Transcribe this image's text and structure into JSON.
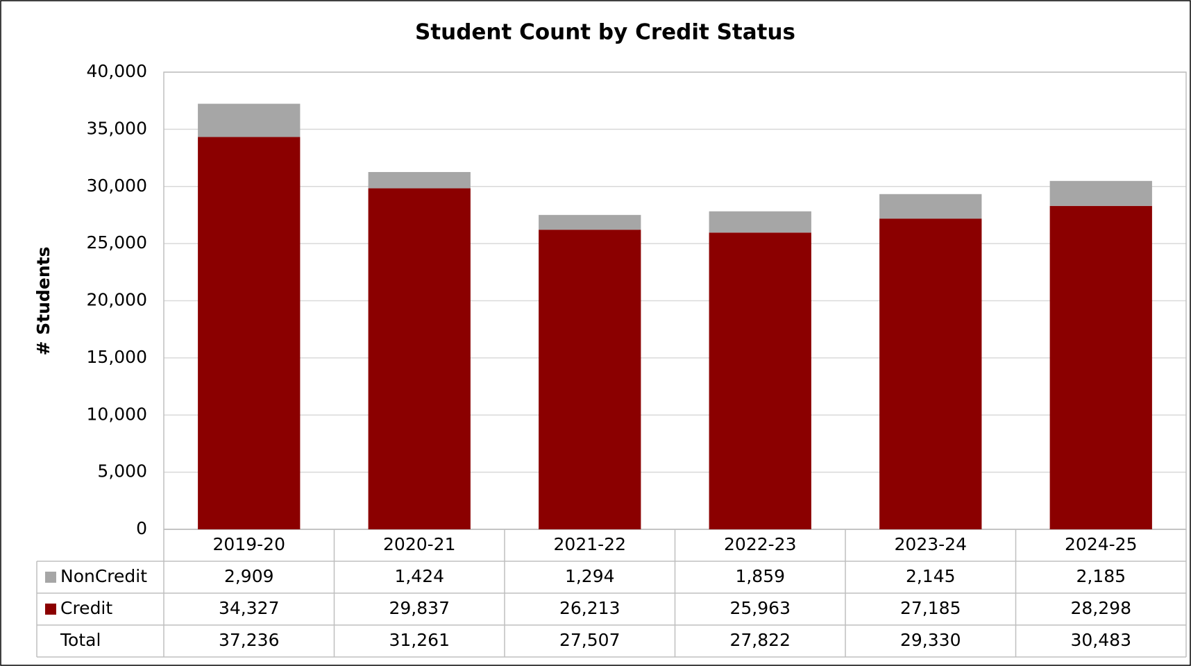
{
  "chart_data": {
    "type": "bar",
    "stacked": true,
    "title": "Student Count by Credit Status",
    "y_label": "# Students",
    "categories": [
      "2019-20",
      "2020-21",
      "2021-22",
      "2022-23",
      "2023-24",
      "2024-25"
    ],
    "series": [
      {
        "name": "NonCredit",
        "color": "#a6a6a6",
        "values": [
          2909,
          1424,
          1294,
          1859,
          2145,
          2185
        ],
        "value_labels": [
          "2,909",
          "1,424",
          "1,294",
          "1,859",
          "2,145",
          "2,185"
        ]
      },
      {
        "name": "Credit",
        "color": "#8b0000",
        "values": [
          34327,
          29837,
          26213,
          25963,
          27185,
          28298
        ],
        "value_labels": [
          "34,327",
          "29,837",
          "26,213",
          "25,963",
          "27,185",
          "28,298"
        ]
      }
    ],
    "total": {
      "name": "Total",
      "labels": [
        "37,236",
        "31,261",
        "27,507",
        "27,822",
        "29,330",
        "30,483"
      ]
    },
    "ylim": [
      0,
      40000
    ],
    "yticks": [
      0,
      {
        "value": 5000,
        "label": "5,000"
      },
      {
        "value": 10000,
        "label": "10,000"
      },
      {
        "value": 15000,
        "label": "15,000"
      },
      {
        "value": 20000,
        "label": "20,000"
      },
      {
        "value": 25000,
        "label": "25,000"
      },
      {
        "value": 30000,
        "label": "30,000"
      },
      {
        "value": 35000,
        "label": "35,000"
      },
      {
        "value": 40000,
        "label": "40,000"
      }
    ],
    "grid": true
  }
}
